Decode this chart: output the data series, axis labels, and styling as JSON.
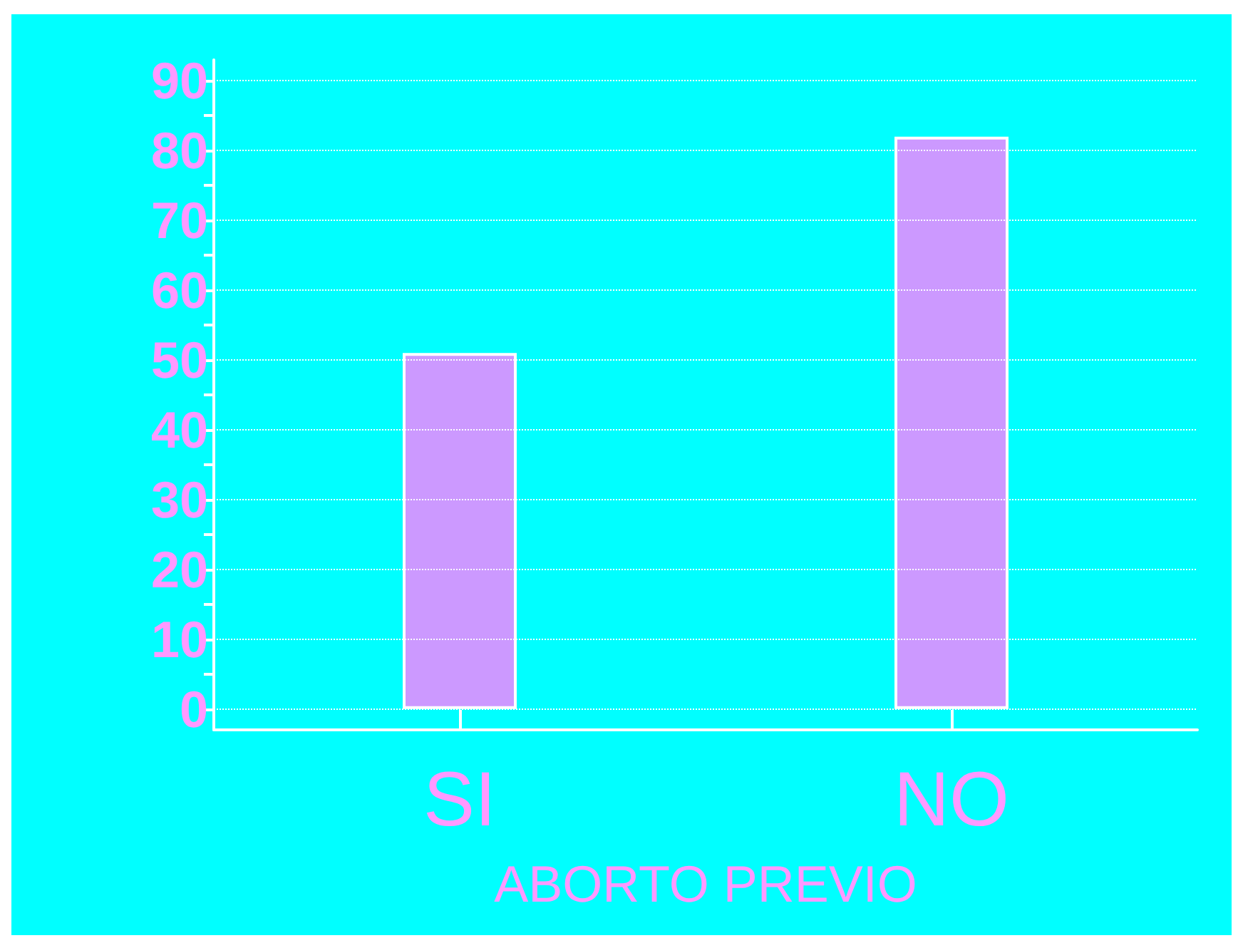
{
  "chart_data": {
    "type": "bar",
    "xlabel": "ABORTO PREVIO",
    "categories": [
      "SI",
      "NO"
    ],
    "values": [
      51,
      82
    ],
    "color": "#cc99ff",
    "ylim": [
      -3,
      93
    ],
    "yticks": [
      0,
      {
        "value": 5,
        "label": null
      },
      10,
      {
        "value": 15,
        "label": null
      },
      20,
      {
        "value": 25,
        "label": null
      },
      30,
      {
        "value": 35,
        "label": null
      },
      40,
      {
        "value": 45,
        "label": null
      },
      50,
      {
        "value": 55,
        "label": null
      },
      60,
      {
        "value": 65,
        "label": null
      },
      70,
      {
        "value": 75,
        "label": null
      },
      80,
      {
        "value": 85,
        "label": null
      },
      90
    ],
    "grid": "y"
  }
}
